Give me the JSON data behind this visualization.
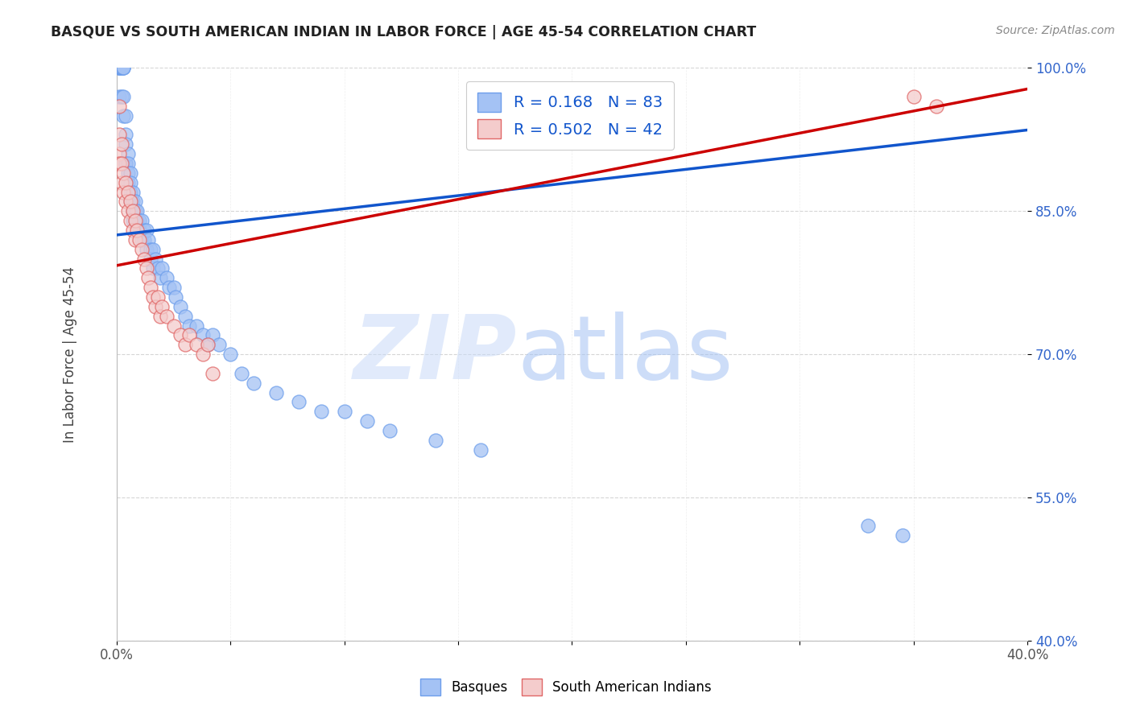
{
  "title": "BASQUE VS SOUTH AMERICAN INDIAN IN LABOR FORCE | AGE 45-54 CORRELATION CHART",
  "source": "Source: ZipAtlas.com",
  "ylabel": "In Labor Force | Age 45-54",
  "xmin": 0.0,
  "xmax": 0.4,
  "ymin": 0.4,
  "ymax": 1.0,
  "yticks": [
    0.4,
    0.55,
    0.7,
    0.85,
    1.0
  ],
  "ytick_labels": [
    "40.0%",
    "55.0%",
    "70.0%",
    "85.0%",
    "100.0%"
  ],
  "xtick_positions": [
    0.0,
    0.05,
    0.1,
    0.15,
    0.2,
    0.25,
    0.3,
    0.35,
    0.4
  ],
  "xtick_labels": [
    "0.0%",
    "",
    "",
    "",
    "",
    "",
    "",
    "",
    "40.0%"
  ],
  "blue_R": 0.168,
  "blue_N": 83,
  "pink_R": 0.502,
  "pink_N": 42,
  "blue_color": "#a4c2f4",
  "pink_color": "#f4cccc",
  "blue_edge_color": "#6d9eeb",
  "pink_edge_color": "#e06666",
  "blue_line_color": "#1155cc",
  "pink_line_color": "#cc0000",
  "legend_label_blue": "Basques",
  "legend_label_pink": "South American Indians",
  "watermark_zip": "ZIP",
  "watermark_atlas": "atlas",
  "watermark_color_zip": "#c9daf8",
  "watermark_color_atlas": "#a4c2f4",
  "blue_scatter_x": [
    0.001,
    0.001,
    0.001,
    0.001,
    0.001,
    0.002,
    0.002,
    0.002,
    0.002,
    0.002,
    0.002,
    0.002,
    0.003,
    0.003,
    0.003,
    0.003,
    0.003,
    0.004,
    0.004,
    0.004,
    0.004,
    0.004,
    0.005,
    0.005,
    0.005,
    0.005,
    0.006,
    0.006,
    0.006,
    0.006,
    0.007,
    0.007,
    0.007,
    0.007,
    0.007,
    0.008,
    0.008,
    0.008,
    0.009,
    0.009,
    0.01,
    0.01,
    0.01,
    0.011,
    0.011,
    0.012,
    0.012,
    0.013,
    0.013,
    0.014,
    0.015,
    0.015,
    0.016,
    0.016,
    0.017,
    0.018,
    0.019,
    0.02,
    0.022,
    0.023,
    0.025,
    0.026,
    0.028,
    0.03,
    0.032,
    0.035,
    0.038,
    0.04,
    0.042,
    0.045,
    0.05,
    0.055,
    0.06,
    0.07,
    0.08,
    0.09,
    0.1,
    0.11,
    0.12,
    0.14,
    0.16,
    0.33,
    0.345
  ],
  "blue_scatter_y": [
    1.0,
    1.0,
    1.0,
    1.0,
    0.97,
    1.0,
    1.0,
    1.0,
    1.0,
    1.0,
    1.0,
    0.97,
    1.0,
    1.0,
    1.0,
    0.97,
    0.95,
    0.95,
    0.93,
    0.92,
    0.9,
    0.9,
    0.91,
    0.9,
    0.89,
    0.88,
    0.89,
    0.88,
    0.87,
    0.86,
    0.87,
    0.86,
    0.85,
    0.85,
    0.84,
    0.86,
    0.85,
    0.84,
    0.85,
    0.84,
    0.84,
    0.83,
    0.83,
    0.84,
    0.82,
    0.83,
    0.82,
    0.83,
    0.81,
    0.82,
    0.81,
    0.8,
    0.81,
    0.79,
    0.8,
    0.79,
    0.78,
    0.79,
    0.78,
    0.77,
    0.77,
    0.76,
    0.75,
    0.74,
    0.73,
    0.73,
    0.72,
    0.71,
    0.72,
    0.71,
    0.7,
    0.68,
    0.67,
    0.66,
    0.65,
    0.64,
    0.64,
    0.63,
    0.62,
    0.61,
    0.6,
    0.52,
    0.51
  ],
  "pink_scatter_x": [
    0.001,
    0.001,
    0.001,
    0.001,
    0.002,
    0.002,
    0.002,
    0.003,
    0.003,
    0.004,
    0.004,
    0.005,
    0.005,
    0.006,
    0.006,
    0.007,
    0.007,
    0.008,
    0.008,
    0.009,
    0.01,
    0.011,
    0.012,
    0.013,
    0.014,
    0.015,
    0.016,
    0.017,
    0.018,
    0.019,
    0.02,
    0.022,
    0.025,
    0.028,
    0.03,
    0.032,
    0.035,
    0.038,
    0.04,
    0.042,
    0.35,
    0.36
  ],
  "pink_scatter_y": [
    0.96,
    0.93,
    0.91,
    0.9,
    0.92,
    0.9,
    0.88,
    0.89,
    0.87,
    0.88,
    0.86,
    0.87,
    0.85,
    0.86,
    0.84,
    0.85,
    0.83,
    0.84,
    0.82,
    0.83,
    0.82,
    0.81,
    0.8,
    0.79,
    0.78,
    0.77,
    0.76,
    0.75,
    0.76,
    0.74,
    0.75,
    0.74,
    0.73,
    0.72,
    0.71,
    0.72,
    0.71,
    0.7,
    0.71,
    0.68,
    0.97,
    0.96
  ],
  "blue_trendline_x": [
    0.0,
    0.4
  ],
  "blue_trendline_y": [
    0.825,
    0.935
  ],
  "pink_trendline_x": [
    0.0,
    0.4
  ],
  "pink_trendline_y": [
    0.793,
    0.978
  ]
}
